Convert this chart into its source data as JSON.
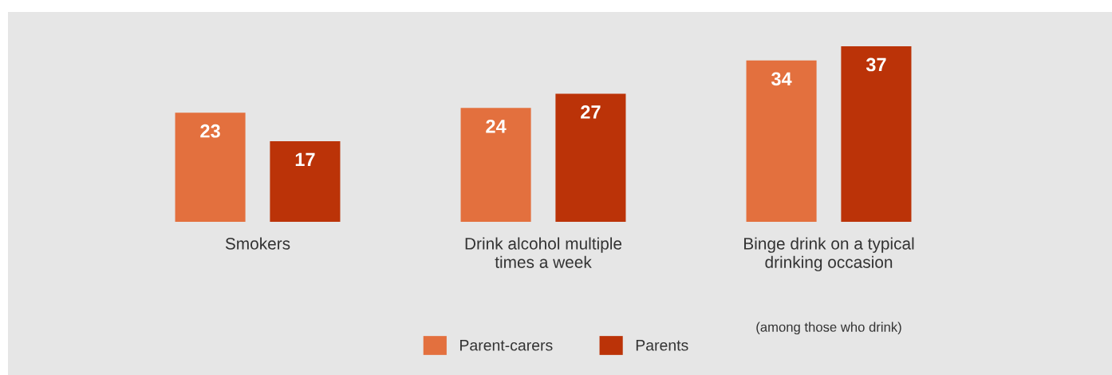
{
  "chart_data": {
    "type": "bar",
    "categories": [
      "Smokers",
      "Drink alcohol multiple\ntimes a week",
      "Binge drink on a typical\ndrinking occasion"
    ],
    "series": [
      {
        "name": "Parent-carers",
        "color": "#e3703e",
        "values": [
          23,
          24,
          34
        ]
      },
      {
        "name": "Parents",
        "color": "#bb3308",
        "values": [
          17,
          27,
          37
        ]
      }
    ],
    "data_labels": true,
    "legend": "bottom",
    "grid": false,
    "annotations": [
      "(among those who drink)"
    ]
  }
}
